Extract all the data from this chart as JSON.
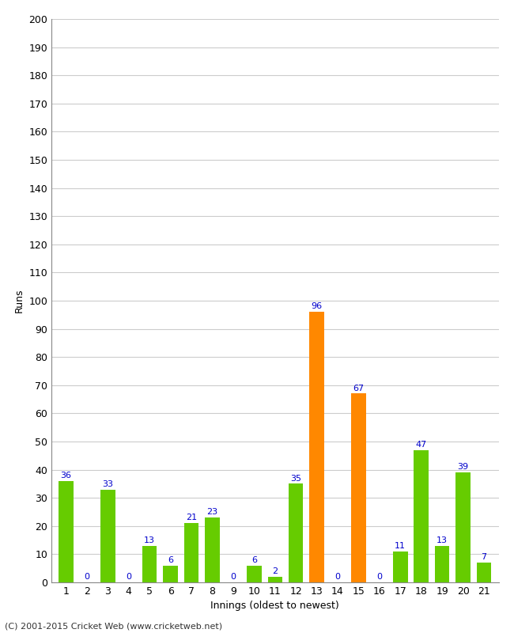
{
  "xlabel": "Innings (oldest to newest)",
  "ylabel": "Runs",
  "innings": [
    1,
    2,
    3,
    4,
    5,
    6,
    7,
    8,
    9,
    10,
    11,
    12,
    13,
    14,
    15,
    16,
    17,
    18,
    19,
    20,
    21
  ],
  "values": [
    36,
    0,
    33,
    0,
    13,
    6,
    21,
    23,
    0,
    6,
    2,
    35,
    96,
    0,
    67,
    0,
    11,
    47,
    13,
    39,
    7
  ],
  "bar_colors": [
    "#66cc00",
    "#66cc00",
    "#66cc00",
    "#66cc00",
    "#66cc00",
    "#66cc00",
    "#66cc00",
    "#66cc00",
    "#66cc00",
    "#66cc00",
    "#66cc00",
    "#66cc00",
    "#ff8800",
    "#66cc00",
    "#ff8800",
    "#66cc00",
    "#66cc00",
    "#66cc00",
    "#66cc00",
    "#66cc00",
    "#66cc00"
  ],
  "ylim": [
    0,
    200
  ],
  "yticks": [
    0,
    10,
    20,
    30,
    40,
    50,
    60,
    70,
    80,
    90,
    100,
    110,
    120,
    130,
    140,
    150,
    160,
    170,
    180,
    190,
    200
  ],
  "label_color": "#0000cc",
  "background_color": "#ffffff",
  "grid_color": "#cccccc",
  "footer": "(C) 2001-2015 Cricket Web (www.cricketweb.net)"
}
